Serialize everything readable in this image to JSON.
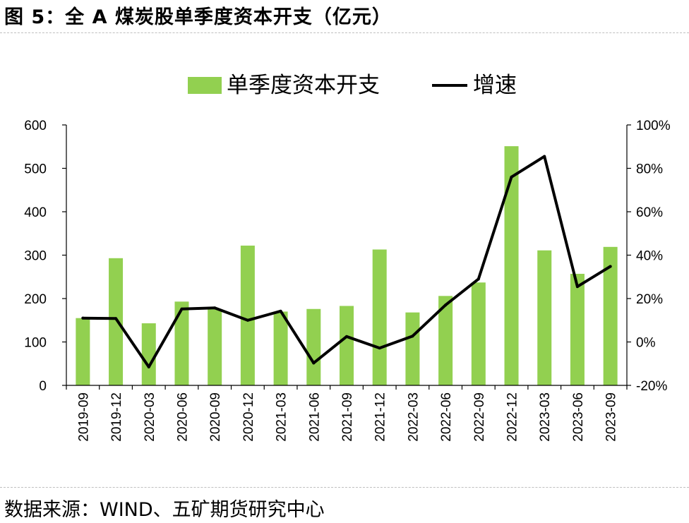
{
  "figure": {
    "title": "图 5：全 A 煤炭股单季度资本开支（亿元）",
    "source": "数据来源：WIND、五矿期货研究中心"
  },
  "colors": {
    "bar": "#92d050",
    "line": "#000000"
  },
  "chart_data": {
    "type": "bar",
    "categories": [
      "2019-09",
      "2019-12",
      "2020-03",
      "2020-06",
      "2020-09",
      "2020-12",
      "2021-03",
      "2021-06",
      "2021-09",
      "2021-12",
      "2022-03",
      "2022-06",
      "2022-09",
      "2022-12",
      "2023-03",
      "2023-06",
      "2023-09"
    ],
    "series": [
      {
        "name": "单季度资本开支",
        "type": "bar",
        "axis": "left",
        "values": [
          155,
          293,
          143,
          193,
          175,
          322,
          170,
          176,
          183,
          313,
          168,
          206,
          237,
          551,
          311,
          257,
          319
        ]
      },
      {
        "name": "增速",
        "type": "line",
        "axis": "right",
        "values": [
          11,
          10.8,
          -11.5,
          15.2,
          15.7,
          10,
          14.2,
          -9.7,
          2.5,
          -2.8,
          2.7,
          17,
          29,
          76,
          85.5,
          25.5,
          34.8
        ]
      }
    ],
    "y_left": {
      "range": [
        0,
        600
      ],
      "ticks": [
        "0",
        "100",
        "200",
        "300",
        "400",
        "500",
        "600"
      ]
    },
    "y_right": {
      "range": [
        -20,
        100
      ],
      "ticks": [
        "-20%",
        "0%",
        "20%",
        "40%",
        "60%",
        "80%",
        "100%"
      ]
    },
    "legend_position": "top-center",
    "grid": false
  }
}
